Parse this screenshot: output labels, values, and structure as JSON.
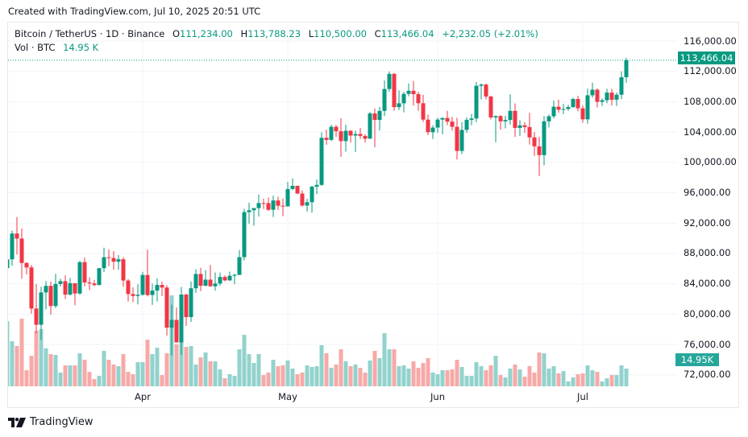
{
  "created": "Created with TradingView.com, Jul 10, 2025 20:51 UTC",
  "legend": {
    "symbol": "Bitcoin / TetherUS · 1D · Binance",
    "o_label": "O",
    "o": "111,234.00",
    "h_label": "H",
    "h": "113,788.23",
    "l_label": "L",
    "l": "110,500.00",
    "c_label": "C",
    "c": "113,466.04",
    "change": "+2,232.05 (+2.01%)",
    "vol_label": "Vol · BTC",
    "vol": "14.95 K"
  },
  "price_tag": "113,466.04",
  "volume_tag": "14.95K",
  "brand": "TradingView",
  "colors": {
    "up": "#089981",
    "down": "#f23645",
    "vol_up": "#92d2cc",
    "vol_down": "#f7a9a7",
    "grid": "#f0f3fa"
  },
  "chart_data": {
    "type": "candlestick",
    "title": "Bitcoin / TetherUS · 1D · Binance",
    "y_ticks": [
      "116,000.00",
      "112,000.00",
      "108,000.00",
      "104,000.00",
      "100,000.00",
      "96,000.00",
      "92,000.00",
      "88,000.00",
      "84,000.00",
      "80,000.00",
      "76,000.00",
      "72,000.00"
    ],
    "y_tick_values": [
      116000,
      112000,
      108000,
      104000,
      100000,
      96000,
      92000,
      88000,
      84000,
      80000,
      76000,
      72000
    ],
    "x_ticks": [
      "Apr",
      "May",
      "Jun",
      "Jul"
    ],
    "x_tick_dates": [
      "2025-04-01",
      "2025-05-01",
      "2025-06-01",
      "2025-07-01"
    ],
    "grid": true,
    "last_price": 113466.04,
    "columns": [
      "date",
      "open",
      "high",
      "low",
      "close",
      "volume_k"
    ],
    "candles": [
      [
        "2025-03-04",
        86065,
        88911,
        81500,
        87222,
        55.1
      ],
      [
        "2025-03-05",
        87222,
        90998,
        86379,
        90623,
        38.1
      ],
      [
        "2025-03-06",
        90623,
        92810,
        87852,
        89961,
        34.0
      ],
      [
        "2025-03-07",
        89961,
        91283,
        84667,
        86742,
        57.1
      ],
      [
        "2025-03-08",
        86742,
        86847,
        85248,
        86154,
        13.6
      ],
      [
        "2025-03-09",
        86154,
        86471,
        80052,
        80734,
        25.8
      ],
      [
        "2025-03-10",
        80734,
        83955,
        77459,
        78595,
        46.9
      ],
      [
        "2025-03-11",
        78595,
        83617,
        76606,
        82862,
        48.3
      ],
      [
        "2025-03-12",
        82862,
        84358,
        80635,
        83722,
        32.0
      ],
      [
        "2025-03-13",
        83722,
        84300,
        79939,
        81066,
        27.2
      ],
      [
        "2025-03-14",
        81066,
        85310,
        80797,
        83969,
        26.5
      ],
      [
        "2025-03-15",
        83969,
        84672,
        83639,
        84343,
        11.6
      ],
      [
        "2025-03-16",
        84343,
        85117,
        82000,
        82579,
        17.7
      ],
      [
        "2025-03-17",
        82579,
        84756,
        82457,
        84075,
        17.7
      ],
      [
        "2025-03-18",
        84075,
        84075,
        81179,
        82719,
        17.7
      ],
      [
        "2025-03-19",
        82719,
        87021,
        82569,
        86854,
        27.9
      ],
      [
        "2025-03-20",
        86854,
        87443,
        83647,
        84167,
        22.4
      ],
      [
        "2025-03-21",
        84167,
        84850,
        83175,
        84043,
        12.2
      ],
      [
        "2025-03-22",
        84043,
        84513,
        83674,
        83832,
        6.1
      ],
      [
        "2025-03-23",
        83832,
        86094,
        83794,
        86054,
        8.8
      ],
      [
        "2025-03-24",
        86054,
        88765,
        85519,
        87498,
        29.9
      ],
      [
        "2025-03-25",
        87498,
        88543,
        86311,
        87392,
        22.4
      ],
      [
        "2025-03-26",
        87392,
        88292,
        85861,
        86909,
        18.4
      ],
      [
        "2025-03-27",
        86909,
        87786,
        85837,
        87232,
        17.0
      ],
      [
        "2025-03-28",
        87232,
        87515,
        83585,
        84424,
        27.2
      ],
      [
        "2025-03-29",
        84424,
        84624,
        81644,
        82648,
        12.2
      ],
      [
        "2025-03-30",
        82648,
        83534,
        81565,
        82390,
        10.2
      ],
      [
        "2025-03-31",
        82390,
        83943,
        81278,
        82550,
        20.4
      ],
      [
        "2025-04-01",
        82550,
        85579,
        82433,
        85159,
        20.4
      ],
      [
        "2025-04-02",
        85159,
        88500,
        82320,
        82516,
        39.4
      ],
      [
        "2025-04-03",
        82516,
        83998,
        81211,
        83102,
        27.2
      ],
      [
        "2025-04-04",
        83102,
        84720,
        81659,
        83843,
        32.6
      ],
      [
        "2025-04-05",
        83843,
        84266,
        82379,
        83504,
        9.5
      ],
      [
        "2025-04-06",
        83504,
        83818,
        77153,
        78214,
        27.9
      ],
      [
        "2025-04-07",
        78214,
        81243,
        74508,
        79235,
        76.8
      ],
      [
        "2025-04-08",
        79235,
        80867,
        76239,
        76272,
        35.4
      ],
      [
        "2025-04-09",
        76272,
        83588,
        74620,
        82574,
        42.2
      ],
      [
        "2025-04-10",
        82574,
        82700,
        78456,
        79607,
        33.3
      ],
      [
        "2025-04-11",
        79607,
        84300,
        78972,
        83404,
        34.0
      ],
      [
        "2025-04-12",
        83404,
        85905,
        82792,
        85287,
        18.4
      ],
      [
        "2025-04-13",
        85287,
        86100,
        83034,
        83739,
        24.5
      ],
      [
        "2025-04-14",
        83739,
        85799,
        83678,
        84542,
        28.6
      ],
      [
        "2025-04-15",
        84542,
        86496,
        83600,
        83668,
        21.1
      ],
      [
        "2025-04-16",
        83668,
        85500,
        83111,
        84033,
        21.1
      ],
      [
        "2025-04-17",
        84033,
        85470,
        83736,
        84895,
        14.3
      ],
      [
        "2025-04-18",
        84895,
        85095,
        84298,
        84450,
        6.8
      ],
      [
        "2025-04-19",
        84450,
        85597,
        84353,
        85059,
        10.2
      ],
      [
        "2025-04-20",
        85059,
        85320,
        83950,
        85174,
        8.8
      ],
      [
        "2025-04-21",
        85174,
        88460,
        85143,
        87512,
        31.3
      ],
      [
        "2025-04-22",
        87512,
        93888,
        87076,
        93442,
        43.5
      ],
      [
        "2025-04-23",
        93442,
        94696,
        91935,
        93691,
        27.2
      ],
      [
        "2025-04-24",
        93691,
        94000,
        91660,
        93980,
        19.7
      ],
      [
        "2025-04-25",
        93980,
        95758,
        92855,
        94638,
        27.2
      ],
      [
        "2025-04-26",
        94638,
        95199,
        93870,
        94630,
        9.5
      ],
      [
        "2025-04-27",
        94630,
        95369,
        93602,
        93755,
        11.6
      ],
      [
        "2025-04-28",
        93755,
        95630,
        92800,
        94982,
        22.4
      ],
      [
        "2025-04-29",
        94982,
        95470,
        93742,
        94284,
        17.0
      ],
      [
        "2025-04-30",
        94284,
        95228,
        92910,
        94207,
        17.7
      ],
      [
        "2025-05-01",
        94207,
        97437,
        94153,
        96492,
        21.8
      ],
      [
        "2025-05-02",
        96492,
        97895,
        96350,
        96910,
        15.0
      ],
      [
        "2025-05-03",
        96910,
        96943,
        95800,
        95891,
        10.2
      ],
      [
        "2025-05-04",
        95891,
        96318,
        94173,
        94315,
        11.6
      ],
      [
        "2025-05-05",
        94315,
        95199,
        93514,
        94748,
        17.7
      ],
      [
        "2025-05-06",
        94748,
        96920,
        93377,
        96802,
        16.3
      ],
      [
        "2025-05-07",
        96802,
        97732,
        95833,
        97032,
        17.0
      ],
      [
        "2025-05-08",
        97032,
        103969,
        96910,
        103241,
        34.7
      ],
      [
        "2025-05-09",
        103241,
        104312,
        102330,
        102970,
        27.9
      ],
      [
        "2025-05-10",
        102970,
        104984,
        102818,
        104696,
        15.6
      ],
      [
        "2025-05-11",
        104696,
        104937,
        103346,
        104106,
        18.4
      ],
      [
        "2025-05-12",
        104106,
        105819,
        100719,
        102812,
        31.3
      ],
      [
        "2025-05-13",
        102812,
        104976,
        101429,
        104170,
        21.1
      ],
      [
        "2025-05-14",
        104170,
        104250,
        102614,
        103539,
        17.0
      ],
      [
        "2025-05-15",
        103539,
        104200,
        101383,
        103744,
        18.4
      ],
      [
        "2025-05-16",
        103744,
        104550,
        103100,
        103489,
        15.6
      ],
      [
        "2025-05-17",
        103489,
        103709,
        102612,
        103126,
        11.6
      ],
      [
        "2025-05-18",
        103126,
        106660,
        103105,
        106455,
        21.8
      ],
      [
        "2025-05-19",
        106455,
        107108,
        102000,
        105606,
        29.9
      ],
      [
        "2025-05-20",
        105606,
        107320,
        104200,
        106792,
        23.8
      ],
      [
        "2025-05-21",
        106792,
        110797,
        106100,
        109678,
        44.9
      ],
      [
        "2025-05-22",
        109678,
        111980,
        109300,
        111673,
        31.3
      ],
      [
        "2025-05-23",
        111673,
        111800,
        106800,
        107288,
        31.3
      ],
      [
        "2025-05-24",
        107288,
        109500,
        106900,
        107791,
        17.0
      ],
      [
        "2025-05-25",
        107791,
        109300,
        106600,
        109035,
        17.7
      ],
      [
        "2025-05-26",
        109035,
        110422,
        108700,
        109440,
        15.0
      ],
      [
        "2025-05-27",
        109440,
        110718,
        107500,
        108994,
        21.1
      ],
      [
        "2025-05-28",
        108994,
        109310,
        106800,
        107803,
        15.6
      ],
      [
        "2025-05-29",
        107803,
        108900,
        105322,
        105642,
        19.7
      ],
      [
        "2025-05-30",
        105642,
        106300,
        103600,
        103985,
        23.8
      ],
      [
        "2025-05-31",
        103985,
        104900,
        103100,
        104591,
        11.6
      ],
      [
        "2025-06-01",
        104591,
        105900,
        103900,
        105642,
        10.2
      ],
      [
        "2025-06-02",
        105642,
        105935,
        103700,
        105857,
        13.6
      ],
      [
        "2025-06-03",
        105857,
        106800,
        104900,
        105376,
        13.6
      ],
      [
        "2025-06-04",
        105376,
        106000,
        104200,
        104696,
        14.3
      ],
      [
        "2025-06-05",
        104696,
        105900,
        100372,
        101509,
        22.4
      ],
      [
        "2025-06-06",
        101509,
        105300,
        101095,
        104288,
        16.3
      ],
      [
        "2025-06-07",
        104288,
        105950,
        103900,
        105615,
        8.8
      ],
      [
        "2025-06-08",
        105615,
        106400,
        104900,
        105794,
        8.8
      ],
      [
        "2025-06-09",
        105794,
        110600,
        105300,
        110100,
        20.4
      ],
      [
        "2025-06-10",
        110100,
        110400,
        108300,
        110262,
        17.0
      ],
      [
        "2025-06-11",
        110262,
        110400,
        108331,
        108686,
        13.6
      ],
      [
        "2025-06-12",
        108686,
        108800,
        105671,
        105930,
        17.7
      ],
      [
        "2025-06-13",
        105930,
        106200,
        102664,
        106106,
        25.8
      ],
      [
        "2025-06-14",
        106106,
        106250,
        104300,
        105414,
        9.5
      ],
      [
        "2025-06-15",
        105414,
        106128,
        104494,
        105594,
        7.5
      ],
      [
        "2025-06-16",
        105594,
        108952,
        104980,
        106795,
        15.0
      ],
      [
        "2025-06-17",
        106795,
        107771,
        103371,
        104551,
        18.4
      ],
      [
        "2025-06-18",
        104551,
        105550,
        103500,
        104886,
        14.3
      ],
      [
        "2025-06-19",
        104886,
        105286,
        103900,
        104659,
        8.2
      ],
      [
        "2025-06-20",
        104659,
        106524,
        102345,
        103297,
        17.0
      ],
      [
        "2025-06-21",
        103297,
        104000,
        100837,
        102120,
        11.6
      ],
      [
        "2025-06-22",
        102120,
        103400,
        98200,
        100964,
        28.6
      ],
      [
        "2025-06-23",
        100964,
        106137,
        99613,
        105413,
        27.9
      ],
      [
        "2025-06-24",
        105413,
        106300,
        104622,
        106082,
        15.0
      ],
      [
        "2025-06-25",
        106082,
        108135,
        105789,
        107340,
        17.0
      ],
      [
        "2025-06-26",
        107340,
        108272,
        106562,
        106948,
        10.9
      ],
      [
        "2025-06-27",
        106948,
        107735,
        106356,
        107047,
        12.9
      ],
      [
        "2025-06-28",
        107047,
        107577,
        106813,
        107296,
        4.1
      ],
      [
        "2025-06-29",
        107296,
        108528,
        107200,
        108357,
        7.5
      ],
      [
        "2025-06-30",
        108357,
        108789,
        106733,
        107136,
        10.2
      ],
      [
        "2025-07-01",
        107136,
        107540,
        105250,
        105681,
        10.9
      ],
      [
        "2025-07-02",
        105681,
        109730,
        105100,
        108850,
        17.7
      ],
      [
        "2025-07-03",
        108850,
        110529,
        108530,
        109584,
        13.6
      ],
      [
        "2025-07-04",
        109584,
        109767,
        107245,
        107984,
        12.2
      ],
      [
        "2025-07-05",
        107984,
        108420,
        107429,
        108198,
        4.1
      ],
      [
        "2025-07-06",
        108198,
        109700,
        107800,
        109203,
        6.8
      ],
      [
        "2025-07-07",
        109203,
        109700,
        107500,
        108262,
        9.5
      ],
      [
        "2025-07-08",
        108262,
        109216,
        107429,
        108922,
        9.5
      ],
      [
        "2025-07-09",
        108922,
        111999,
        108324,
        111234,
        17.7
      ],
      [
        "2025-07-10",
        111234,
        113788.23,
        110500,
        113466.04,
        14.95
      ]
    ]
  }
}
